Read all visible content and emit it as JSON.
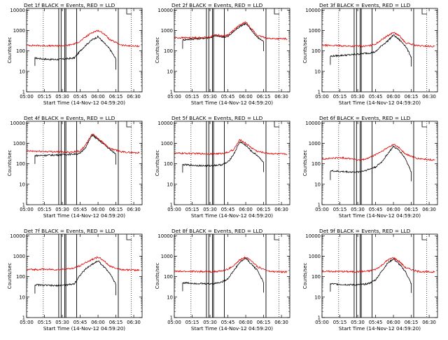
{
  "figure": {
    "ylabel": "Counts/sec",
    "xlabel": "Start Time (14-Nov-12 04:59:20)",
    "xticks": [
      "05:00",
      "05:15",
      "05:30",
      "05:45",
      "06:00",
      "06:15",
      "06:30"
    ],
    "yticks": [
      "1",
      "10",
      "100",
      "1000",
      "10000"
    ],
    "colors": {
      "events": "#000000",
      "lld": "#e00000"
    }
  },
  "chart_data": [
    {
      "type": "line",
      "title": "Det 1f BLACK = Events, RED = LLD",
      "ylim": [
        1,
        12000
      ],
      "yscale": "log",
      "x_range": [
        "05:00",
        "06:37"
      ],
      "series": [
        {
          "name": "BLACK = Events",
          "x": [
            "05:07",
            "05:15",
            "05:25",
            "05:30",
            "05:35",
            "05:40",
            "05:45",
            "05:50",
            "05:55",
            "06:00",
            "06:05",
            "06:10",
            "06:15"
          ],
          "values": [
            45,
            40,
            38,
            40,
            42,
            45,
            100,
            200,
            350,
            500,
            250,
            120,
            40
          ]
        },
        {
          "name": "RED = LLD",
          "x": [
            "05:00",
            "05:15",
            "05:25",
            "05:30",
            "05:35",
            "05:40",
            "05:45",
            "05:50",
            "05:55",
            "06:00",
            "06:05",
            "06:10",
            "06:20",
            "06:30",
            "06:35"
          ],
          "values": [
            190,
            180,
            175,
            180,
            190,
            220,
            300,
            500,
            800,
            1000,
            700,
            350,
            190,
            170,
            175
          ]
        }
      ]
    },
    {
      "type": "line",
      "title": "Det 2f BLACK = Events, RED = LLD",
      "ylim": [
        1,
        12000
      ],
      "yscale": "log",
      "x_range": [
        "05:00",
        "06:37"
      ],
      "series": [
        {
          "name": "BLACK = Events",
          "x": [
            "05:07",
            "05:15",
            "05:25",
            "05:30",
            "05:35",
            "05:40",
            "05:45",
            "05:50",
            "05:55",
            "06:00",
            "06:05",
            "06:10",
            "06:15"
          ],
          "values": [
            350,
            380,
            420,
            450,
            550,
            480,
            500,
            900,
            1600,
            2200,
            1000,
            450,
            300
          ]
        },
        {
          "name": "RED = LLD",
          "x": [
            "05:00",
            "05:15",
            "05:25",
            "05:30",
            "05:35",
            "05:40",
            "05:45",
            "05:50",
            "05:55",
            "06:00",
            "06:05",
            "06:10",
            "06:20",
            "06:30",
            "06:35"
          ],
          "values": [
            440,
            440,
            450,
            480,
            620,
            550,
            600,
            1100,
            1800,
            2600,
            1200,
            550,
            400,
            390,
            390
          ]
        }
      ]
    },
    {
      "type": "line",
      "title": "Det 3f BLACK = Events, RED = LLD",
      "ylim": [
        1,
        12000
      ],
      "yscale": "log",
      "x_range": [
        "05:00",
        "06:37"
      ],
      "series": [
        {
          "name": "BLACK = Events",
          "x": [
            "05:07",
            "05:15",
            "05:25",
            "05:30",
            "05:35",
            "05:40",
            "05:45",
            "05:50",
            "05:55",
            "06:00",
            "06:05",
            "06:10",
            "06:15"
          ],
          "values": [
            55,
            60,
            65,
            70,
            75,
            80,
            90,
            180,
            300,
            600,
            350,
            180,
            50
          ]
        },
        {
          "name": "RED = LLD",
          "x": [
            "05:00",
            "05:15",
            "05:25",
            "05:30",
            "05:35",
            "05:40",
            "05:45",
            "05:50",
            "05:55",
            "06:00",
            "06:05",
            "06:10",
            "06:20",
            "06:30",
            "06:35"
          ],
          "values": [
            190,
            180,
            170,
            175,
            170,
            180,
            220,
            350,
            550,
            800,
            550,
            250,
            180,
            170,
            165
          ]
        }
      ]
    },
    {
      "type": "line",
      "title": "Det 4f BLACK = Events, RED = LLD",
      "ylim": [
        1,
        12000
      ],
      "yscale": "log",
      "x_range": [
        "05:00",
        "06:37"
      ],
      "series": [
        {
          "name": "BLACK = Events",
          "x": [
            "05:07",
            "05:15",
            "05:25",
            "05:30",
            "05:35",
            "05:40",
            "05:45",
            "05:50",
            "05:55",
            "06:00",
            "06:05",
            "06:10",
            "06:15"
          ],
          "values": [
            250,
            260,
            270,
            280,
            290,
            300,
            320,
            700,
            2600,
            1500,
            900,
            500,
            300
          ]
        },
        {
          "name": "RED = LLD",
          "x": [
            "05:00",
            "05:15",
            "05:25",
            "05:30",
            "05:35",
            "05:40",
            "05:45",
            "05:50",
            "05:55",
            "06:00",
            "06:05",
            "06:10",
            "06:20",
            "06:30",
            "06:35"
          ],
          "values": [
            420,
            400,
            390,
            380,
            380,
            390,
            420,
            900,
            3000,
            1800,
            1000,
            550,
            380,
            350,
            350
          ]
        }
      ]
    },
    {
      "type": "line",
      "title": "Det 5f BLACK = Events, RED = LLD",
      "ylim": [
        1,
        12000
      ],
      "yscale": "log",
      "x_range": [
        "05:00",
        "06:37"
      ],
      "series": [
        {
          "name": "BLACK = Events",
          "x": [
            "05:07",
            "05:15",
            "05:25",
            "05:30",
            "05:35",
            "05:40",
            "05:45",
            "05:50",
            "05:55",
            "06:00",
            "06:05",
            "06:10",
            "06:15"
          ],
          "values": [
            90,
            85,
            80,
            80,
            85,
            90,
            120,
            300,
            1200,
            800,
            400,
            250,
            120
          ]
        },
        {
          "name": "RED = LLD",
          "x": [
            "05:00",
            "05:15",
            "05:25",
            "05:30",
            "05:35",
            "05:40",
            "05:45",
            "05:50",
            "05:55",
            "06:00",
            "06:05",
            "06:10",
            "06:20",
            "06:30",
            "06:35"
          ],
          "values": [
            330,
            320,
            310,
            310,
            310,
            320,
            360,
            500,
            1500,
            1000,
            600,
            400,
            320,
            300,
            300
          ]
        }
      ]
    },
    {
      "type": "line",
      "title": "Det 6f BLACK = Events, RED = LLD",
      "ylim": [
        1,
        12000
      ],
      "yscale": "log",
      "x_range": [
        "05:00",
        "06:37"
      ],
      "series": [
        {
          "name": "BLACK = Events",
          "x": [
            "05:07",
            "05:15",
            "05:25",
            "05:30",
            "05:35",
            "05:40",
            "05:45",
            "05:50",
            "05:55",
            "06:00",
            "06:05",
            "06:10",
            "06:15"
          ],
          "values": [
            45,
            42,
            40,
            40,
            45,
            55,
            70,
            120,
            300,
            700,
            450,
            180,
            40
          ]
        },
        {
          "name": "RED = LLD",
          "x": [
            "05:00",
            "05:15",
            "05:25",
            "05:30",
            "05:35",
            "05:40",
            "05:45",
            "05:50",
            "05:55",
            "06:00",
            "06:05",
            "06:10",
            "06:20",
            "06:30",
            "06:35"
          ],
          "values": [
            170,
            200,
            180,
            150,
            160,
            200,
            280,
            400,
            600,
            900,
            600,
            300,
            180,
            160,
            150
          ]
        }
      ]
    },
    {
      "type": "line",
      "title": "Det 7f BLACK = Events, RED = LLD",
      "ylim": [
        1,
        12000
      ],
      "yscale": "log",
      "x_range": [
        "05:00",
        "06:37"
      ],
      "series": [
        {
          "name": "BLACK = Events",
          "x": [
            "05:07",
            "05:15",
            "05:25",
            "05:30",
            "05:35",
            "05:40",
            "05:45",
            "05:50",
            "05:55",
            "06:00",
            "06:05",
            "06:10",
            "06:15"
          ],
          "values": [
            40,
            38,
            36,
            38,
            40,
            45,
            120,
            250,
            400,
            600,
            300,
            150,
            40
          ]
        },
        {
          "name": "RED = LLD",
          "x": [
            "05:00",
            "05:15",
            "05:25",
            "05:30",
            "05:35",
            "05:40",
            "05:45",
            "05:50",
            "05:55",
            "06:00",
            "06:05",
            "06:10",
            "06:20",
            "06:30",
            "06:35"
          ],
          "values": [
            220,
            230,
            220,
            230,
            240,
            260,
            350,
            500,
            700,
            900,
            600,
            320,
            220,
            210,
            210
          ]
        }
      ]
    },
    {
      "type": "line",
      "title": "Det 8f BLACK = Events, RED = LLD",
      "ylim": [
        1,
        12000
      ],
      "yscale": "log",
      "x_range": [
        "05:00",
        "06:37"
      ],
      "series": [
        {
          "name": "BLACK = Events",
          "x": [
            "05:07",
            "05:15",
            "05:25",
            "05:30",
            "05:35",
            "05:40",
            "05:45",
            "05:50",
            "05:55",
            "06:00",
            "06:05",
            "06:10",
            "06:15"
          ],
          "values": [
            50,
            48,
            45,
            45,
            48,
            55,
            80,
            200,
            500,
            800,
            400,
            200,
            50
          ]
        },
        {
          "name": "RED = LLD",
          "x": [
            "05:00",
            "05:15",
            "05:25",
            "05:30",
            "05:35",
            "05:40",
            "05:45",
            "05:50",
            "05:55",
            "06:00",
            "06:05",
            "06:10",
            "06:20",
            "06:30",
            "06:35"
          ],
          "values": [
            180,
            180,
            175,
            175,
            180,
            190,
            230,
            350,
            650,
            900,
            600,
            300,
            180,
            170,
            170
          ]
        }
      ]
    },
    {
      "type": "line",
      "title": "Det 9f BLACK = Events, RED = LLD",
      "ylim": [
        1,
        12000
      ],
      "yscale": "log",
      "x_range": [
        "05:00",
        "06:37"
      ],
      "series": [
        {
          "name": "BLACK = Events",
          "x": [
            "05:07",
            "05:15",
            "05:25",
            "05:30",
            "05:35",
            "05:40",
            "05:45",
            "05:50",
            "05:55",
            "06:00",
            "06:05",
            "06:10",
            "06:15"
          ],
          "values": [
            45,
            42,
            40,
            40,
            42,
            48,
            70,
            180,
            450,
            750,
            400,
            180,
            45
          ]
        },
        {
          "name": "RED = LLD",
          "x": [
            "05:00",
            "05:15",
            "05:25",
            "05:30",
            "05:35",
            "05:40",
            "05:45",
            "05:50",
            "05:55",
            "06:00",
            "06:05",
            "06:10",
            "06:20",
            "06:30",
            "06:35"
          ],
          "values": [
            180,
            180,
            175,
            175,
            180,
            190,
            230,
            350,
            650,
            850,
            550,
            280,
            180,
            170,
            170
          ]
        }
      ]
    }
  ]
}
